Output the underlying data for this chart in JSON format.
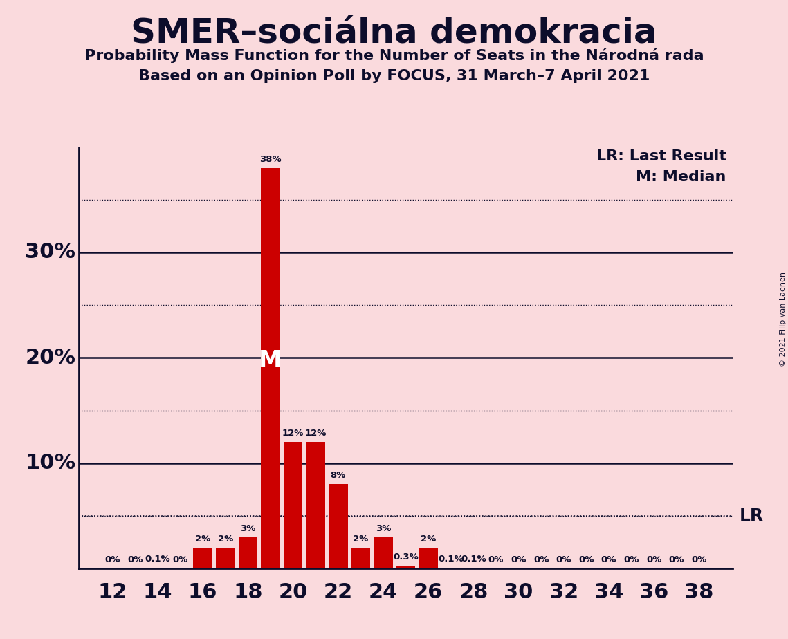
{
  "title": "SMER–sociálna demokracia",
  "subtitle1": "Probability Mass Function for the Number of Seats in the Národná rada",
  "subtitle2": "Based on an Opinion Poll by FOCUS, 31 March–7 April 2021",
  "copyright": "© 2021 Filip van Laenen",
  "seats": [
    12,
    13,
    14,
    15,
    16,
    17,
    18,
    19,
    20,
    21,
    22,
    23,
    24,
    25,
    26,
    27,
    28,
    29,
    30,
    31,
    32,
    33,
    34,
    35,
    36,
    37,
    38
  ],
  "probabilities": [
    0.0,
    0.0,
    0.1,
    0.0,
    2.0,
    2.0,
    3.0,
    38.0,
    12.0,
    12.0,
    8.0,
    2.0,
    3.0,
    0.3,
    2.0,
    0.1,
    0.1,
    0.0,
    0.0,
    0.0,
    0.0,
    0.0,
    0.0,
    0.0,
    0.0,
    0.0,
    0.0
  ],
  "labels": [
    "0%",
    "0%",
    "0.1%",
    "0%",
    "2%",
    "2%",
    "3%",
    "38%",
    "12%",
    "12%",
    "8%",
    "2%",
    "3%",
    "0.3%",
    "2%",
    "0.1%",
    "0.1%",
    "0%",
    "0%",
    "0%",
    "0%",
    "0%",
    "0%",
    "0%",
    "0%",
    "0%",
    "0%"
  ],
  "bar_color": "#cc0000",
  "background_color": "#fadadd",
  "text_color": "#0d0d2b",
  "median_seat": 19,
  "lr_value": 5.0,
  "ylim": [
    0,
    40
  ],
  "solid_yticks": [
    10,
    20,
    30
  ],
  "dotted_yticks": [
    5,
    15,
    25,
    35
  ],
  "ytick_labels": {
    "10": "10%",
    "20": "20%",
    "30": "30%"
  },
  "xlim": [
    10.5,
    39.5
  ],
  "xtick_positions": [
    12,
    14,
    16,
    18,
    20,
    22,
    24,
    26,
    28,
    30,
    32,
    34,
    36,
    38
  ]
}
